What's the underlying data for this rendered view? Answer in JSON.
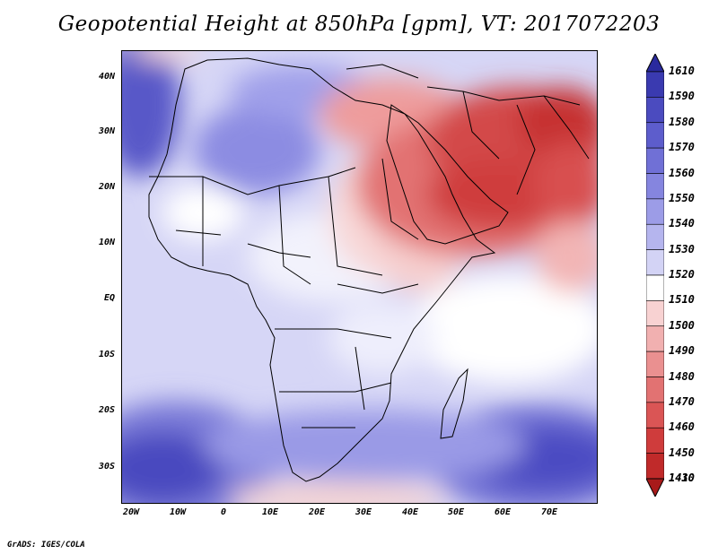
{
  "title": "Geopotential Height at 850hPa [gpm], VT: 2017072203",
  "credit": "GrADS: IGES/COLA",
  "map": {
    "lat_labels": [
      "40N",
      "30N",
      "20N",
      "10N",
      "EQ",
      "10S",
      "20S",
      "30S"
    ],
    "lon_labels": [
      "20W",
      "10W",
      "0",
      "10E",
      "20E",
      "30E",
      "40E",
      "50E",
      "60E",
      "70E"
    ]
  },
  "colorbar": {
    "labels": [
      "1610",
      "1590",
      "1580",
      "1570",
      "1560",
      "1550",
      "1540",
      "1530",
      "1520",
      "1510",
      "1500",
      "1490",
      "1480",
      "1470",
      "1460",
      "1450",
      "1430",
      "1410"
    ],
    "colors": [
      "#2a2a9e",
      "#3a3ab0",
      "#4b4bbf",
      "#5d5dcc",
      "#7070d6",
      "#8585df",
      "#9c9ce7",
      "#b5b5ee",
      "#d3d3f5",
      "#ffffff",
      "#f8d2d2",
      "#f1b0b0",
      "#ea9090",
      "#e27272",
      "#da5555",
      "#cf3c3c",
      "#c02a2a",
      "#a81a1a"
    ]
  }
}
